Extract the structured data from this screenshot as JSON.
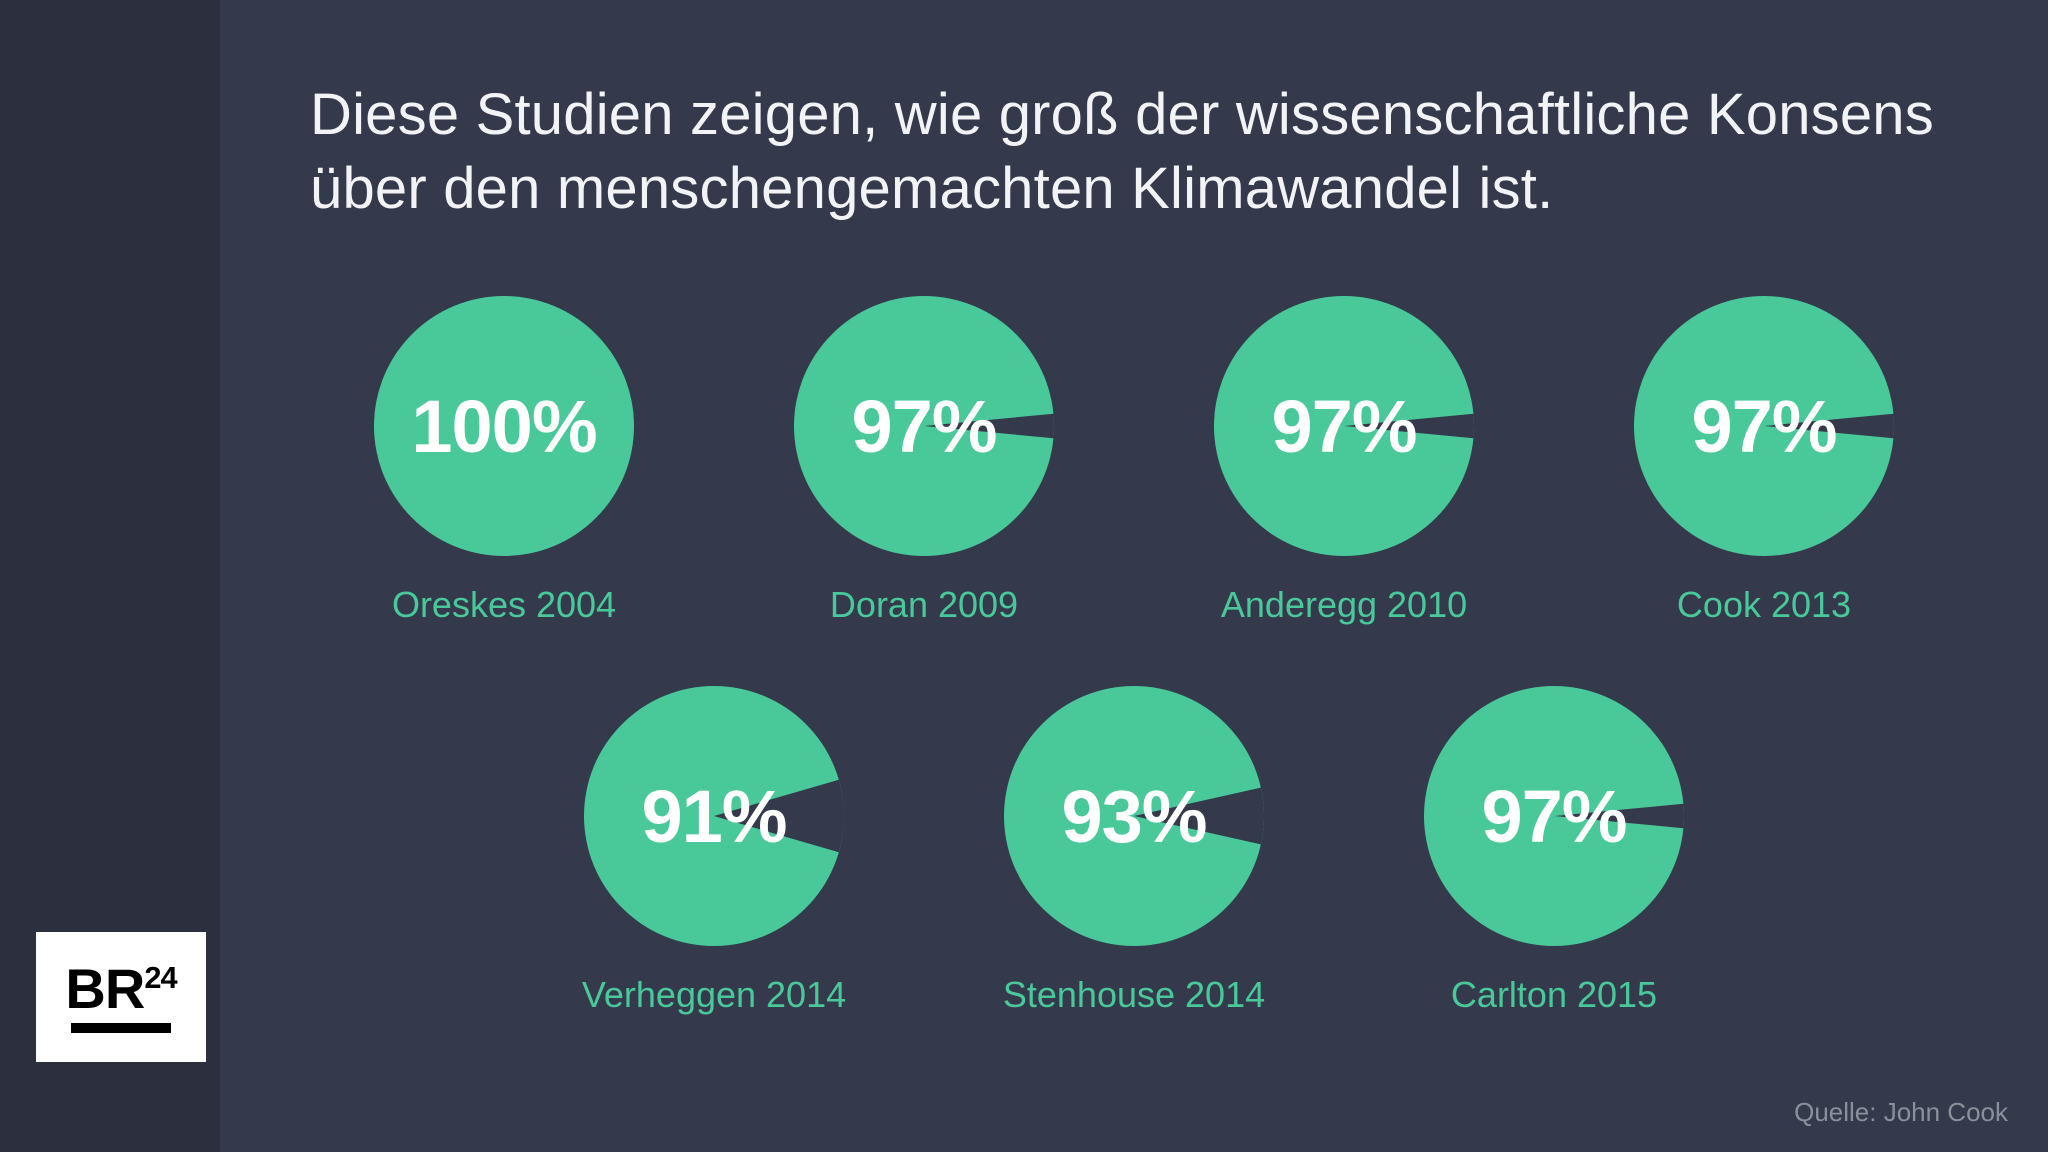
{
  "colors": {
    "bg_outer": "#2b2f3e",
    "bg_panel": "#343a4b",
    "title": "#f2f3f5",
    "pie_fill": "#49c99a",
    "pie_gap": "#343a4b",
    "label": "#49c99a",
    "source": "#8a8f9c"
  },
  "title": "Diese Studien zeigen, wie groß der wissenschaftliche Konsens über den menschengemachten Klimawandel ist.",
  "pie": {
    "radius": 130,
    "gap_direction_deg": 0,
    "percent_fontsize": 74,
    "label_fontsize": 36
  },
  "rows": [
    [
      {
        "percent": 100,
        "label": "Oreskes 2004"
      },
      {
        "percent": 97,
        "label": "Doran 2009"
      },
      {
        "percent": 97,
        "label": "Anderegg 2010"
      },
      {
        "percent": 97,
        "label": "Cook 2013"
      }
    ],
    [
      {
        "percent": 91,
        "label": "Verheggen 2014"
      },
      {
        "percent": 93,
        "label": "Stenhouse 2014"
      },
      {
        "percent": 97,
        "label": "Carlton 2015"
      }
    ]
  ],
  "logo": {
    "text_main": "BR",
    "text_sup": "24"
  },
  "source": "Quelle: John Cook"
}
